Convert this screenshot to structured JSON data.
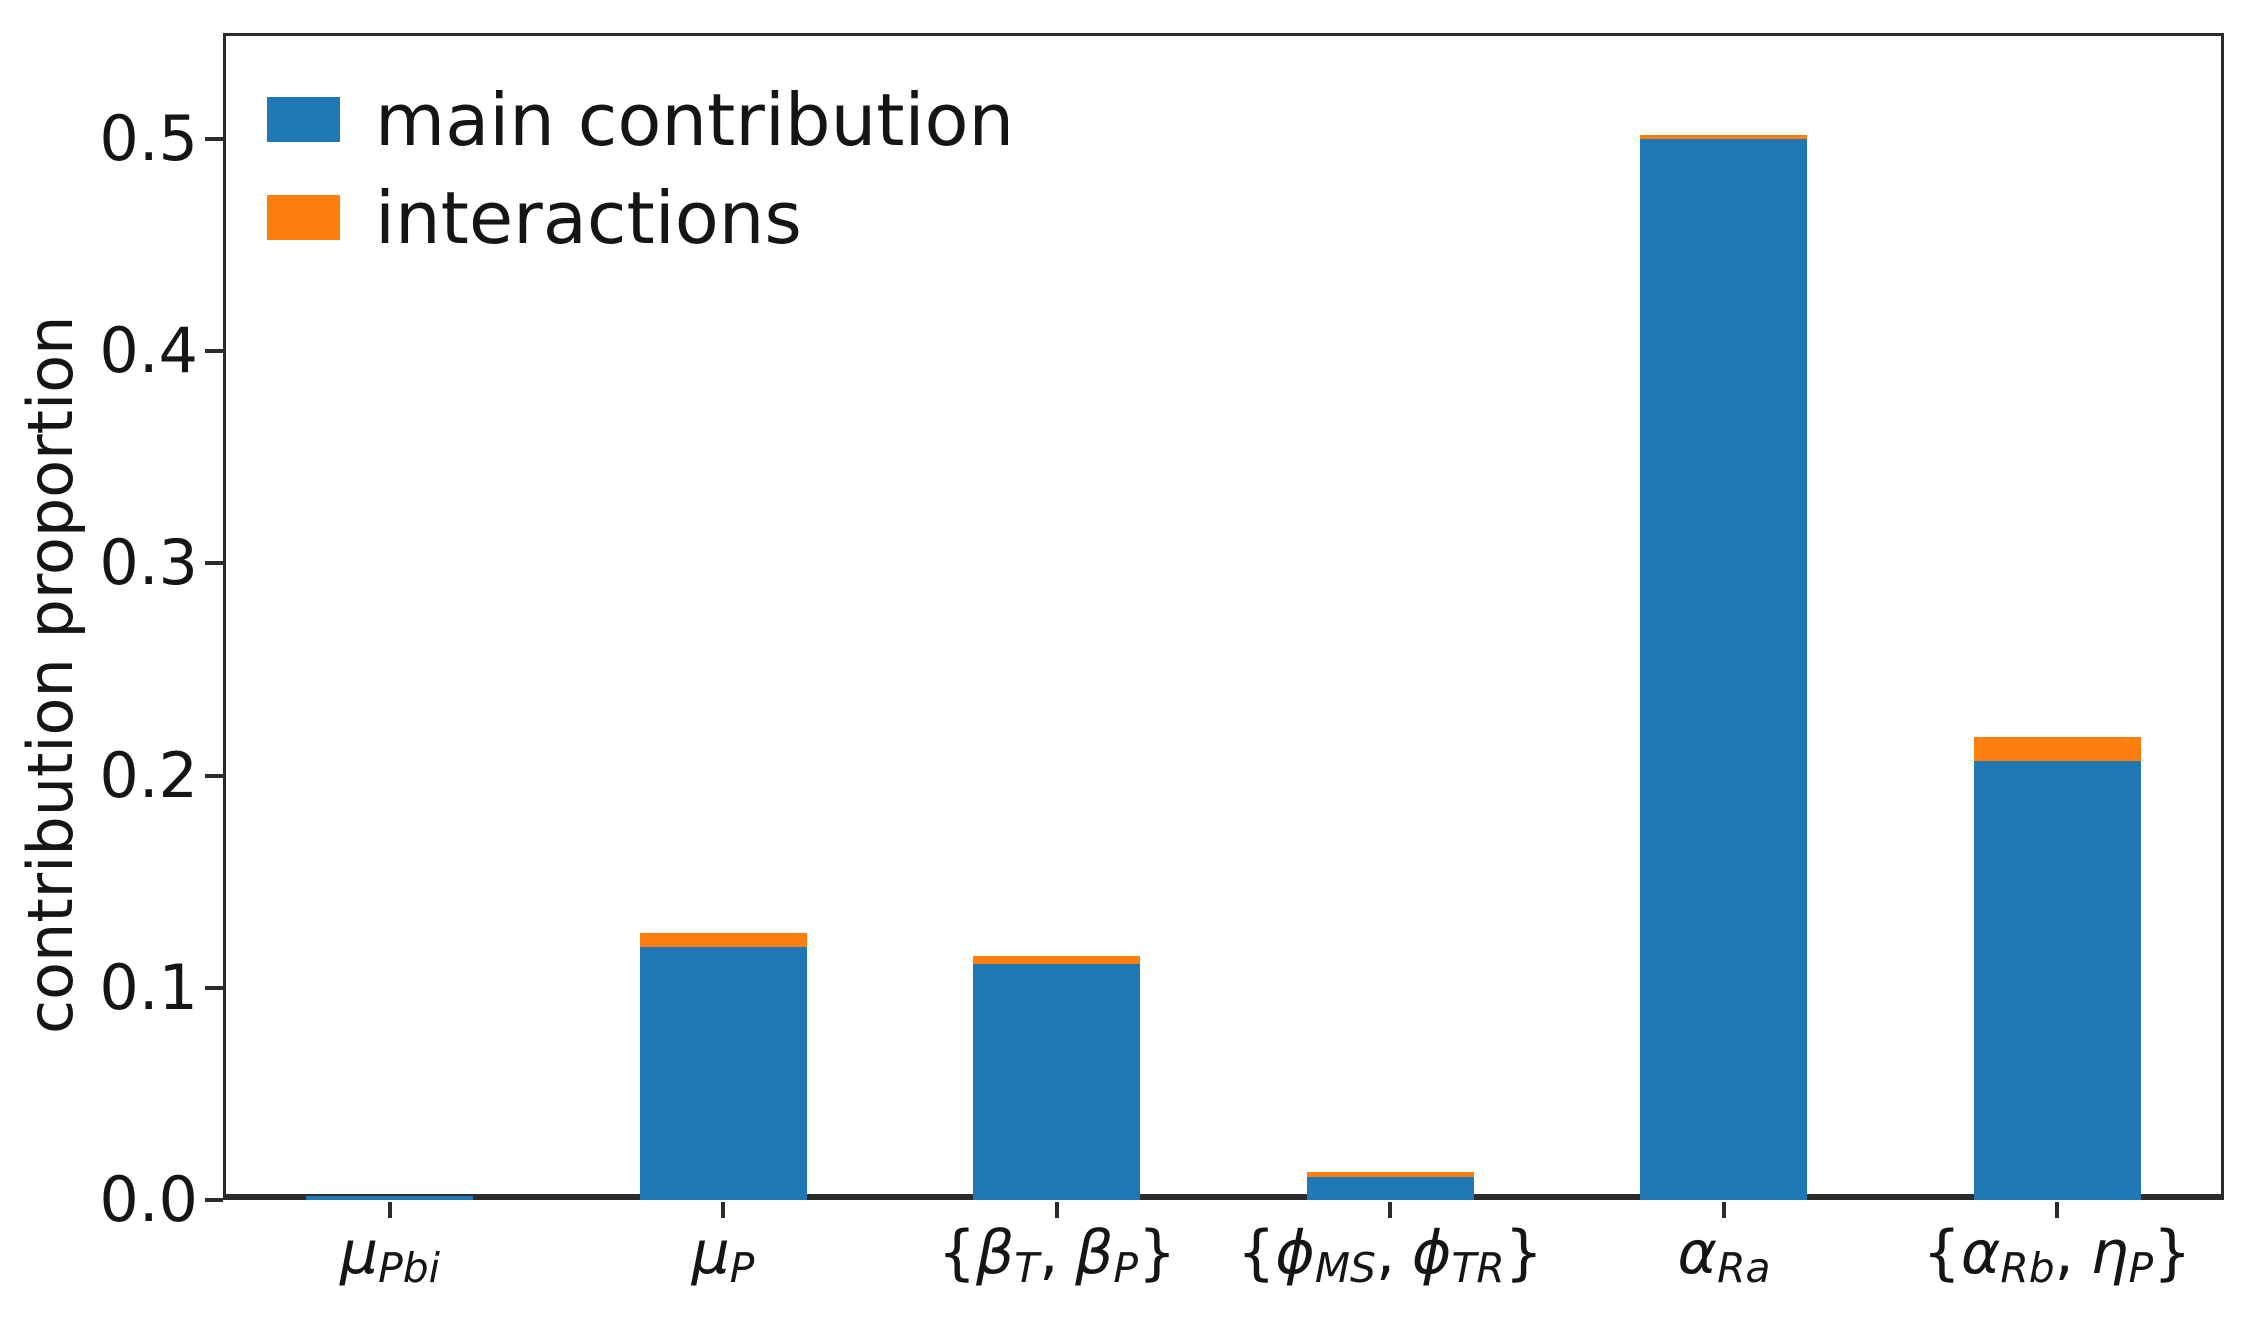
{
  "chart_data": {
    "type": "bar",
    "stacked": true,
    "title": "",
    "xlabel": "",
    "ylabel": "contribution proportion",
    "ylim": [
      0,
      0.55
    ],
    "grid": false,
    "legend_position": "upper left",
    "yticks": [
      0.0,
      0.1,
      0.2,
      0.3,
      0.4,
      0.5
    ],
    "ytick_labels": [
      "0.0",
      "0.1",
      "0.2",
      "0.3",
      "0.4",
      "0.5"
    ],
    "categories": [
      "μ_Pbi",
      "μ_P",
      "{β_T, β_P}",
      "{ϕ_MS, ϕ_TR}",
      "α_Ra",
      "{α_Rb, η_P}"
    ],
    "category_label_parts": [
      [
        [
          "μ",
          "i"
        ],
        [
          "Pbi",
          "s"
        ]
      ],
      [
        [
          "μ",
          "i"
        ],
        [
          "P",
          "s"
        ]
      ],
      [
        [
          "{",
          "n"
        ],
        [
          "β",
          "i"
        ],
        [
          "T",
          "s"
        ],
        [
          ",",
          "c"
        ],
        [
          "β",
          "i"
        ],
        [
          "P",
          "s"
        ],
        [
          "}",
          "n"
        ]
      ],
      [
        [
          "{",
          "n"
        ],
        [
          "ϕ",
          "i"
        ],
        [
          "MS",
          "s"
        ],
        [
          ",",
          "c"
        ],
        [
          "ϕ",
          "i"
        ],
        [
          "TR",
          "s"
        ],
        [
          "}",
          "n"
        ]
      ],
      [
        [
          "α",
          "i"
        ],
        [
          "Ra",
          "s"
        ]
      ],
      [
        [
          "{",
          "n"
        ],
        [
          "α",
          "i"
        ],
        [
          "Rb",
          "s"
        ],
        [
          ",",
          "c"
        ],
        [
          "η",
          "i"
        ],
        [
          "P",
          "s"
        ],
        [
          "}",
          "n"
        ]
      ]
    ],
    "series": [
      {
        "name": "main contribution",
        "color": "#1f77b4",
        "values": [
          0.002,
          0.119,
          0.111,
          0.011,
          0.5,
          0.207
        ]
      },
      {
        "name": "interactions",
        "color": "#ff7f0e",
        "values": [
          0.0,
          0.007,
          0.004,
          0.002,
          0.002,
          0.011
        ]
      }
    ],
    "stacked_totals": [
      0.002,
      0.126,
      0.115,
      0.013,
      0.502,
      0.218
    ]
  }
}
